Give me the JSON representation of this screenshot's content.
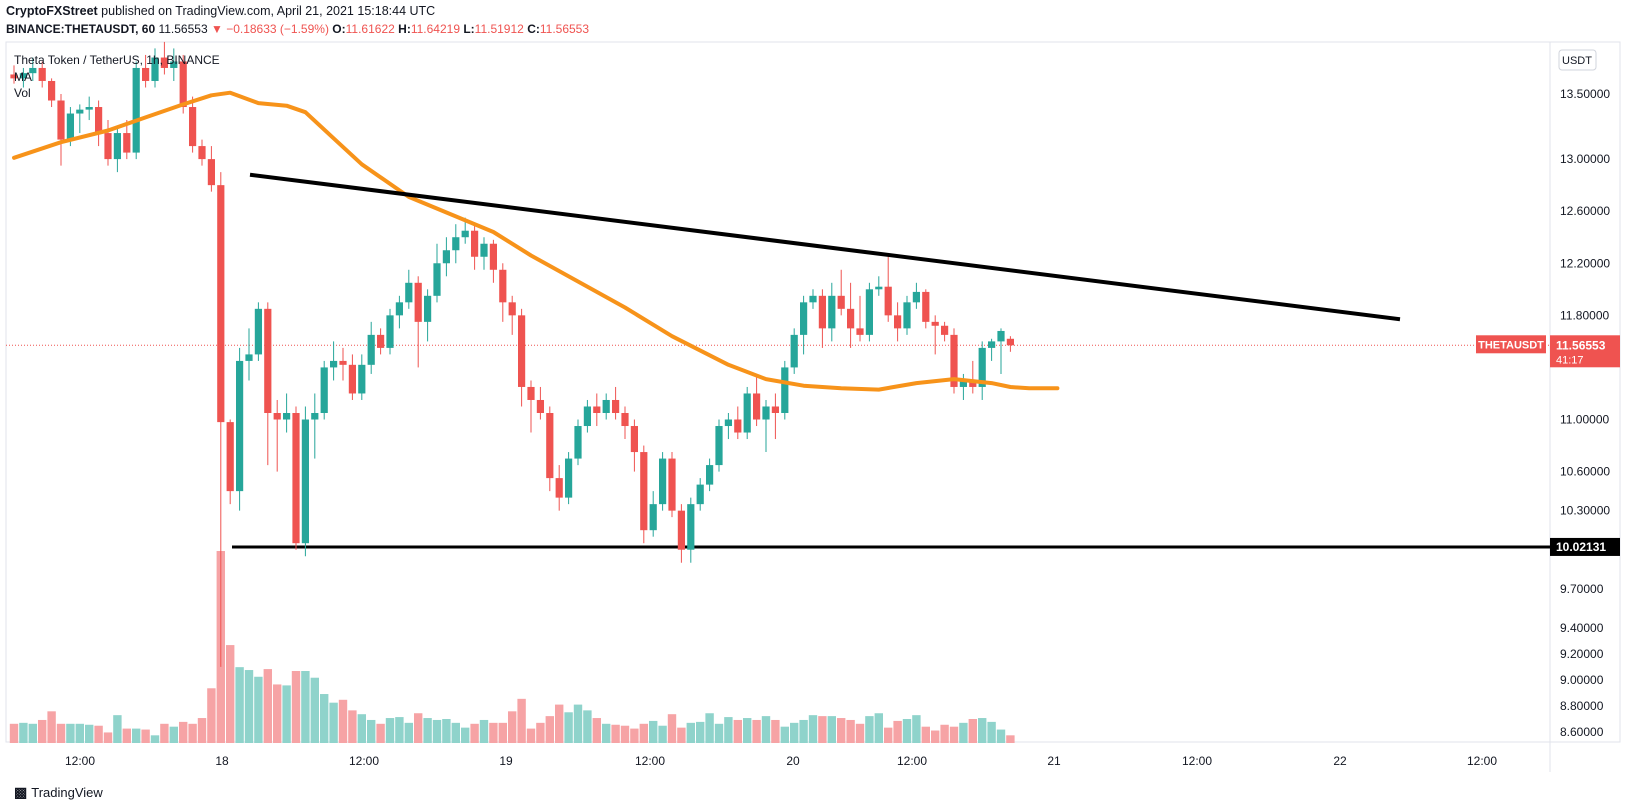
{
  "header": {
    "publisher": "CryptoFXStreet",
    "published_text": "published on TradingView.com, April 21, 2021 15:18:44 UTC",
    "symbol_line": "BINANCE:THETAUSDT, 60",
    "last": "11.56553",
    "change": "▼ −0.18633 (−1.59%)",
    "o_label": "O:",
    "o": "11.61622",
    "h_label": "H:",
    "h": "11.64219",
    "l_label": "L:",
    "l": "11.51912",
    "c_label": "C:",
    "c": "11.56553"
  },
  "legend": {
    "title": "Theta Token / TetherUS, 1h, BINANCE",
    "ma": "MA",
    "vol": "Vol"
  },
  "footer": {
    "brand": "TradingView"
  },
  "colors": {
    "up": "#26a69a",
    "down": "#ef5350",
    "vol_up": "#8fd3cb",
    "vol_down": "#f6a3a5",
    "ma": "#f7931a",
    "trend": "#000000",
    "price_tag": "#ef5350"
  },
  "chart_data": {
    "type": "candlestick",
    "pair": "THETAUSDT",
    "currency_label": "USDT",
    "y_ticks": [
      "13.50000",
      "13.00000",
      "12.60000",
      "12.20000",
      "11.80000",
      "11.00000",
      "10.60000",
      "10.30000",
      "9.70000",
      "9.40000",
      "9.20000",
      "9.00000",
      "8.80000",
      "8.60000"
    ],
    "x_ticks": [
      "12:00",
      "18",
      "12:00",
      "19",
      "12:00",
      "20",
      "12:00",
      "21",
      "12:00",
      "22",
      "12:00"
    ],
    "last_price_label": "11.56553",
    "countdown": "41:17",
    "support_label": "10.02131",
    "support_level": 10.02131,
    "trendline": {
      "from": 12.88,
      "to": 11.77
    },
    "candles": [
      [
        13.65,
        13.72,
        13.58,
        13.62
      ],
      [
        13.62,
        13.7,
        13.55,
        13.66
      ],
      [
        13.66,
        13.78,
        13.6,
        13.7
      ],
      [
        13.7,
        13.75,
        13.55,
        13.6
      ],
      [
        13.6,
        13.62,
        13.4,
        13.45
      ],
      [
        13.45,
        13.5,
        12.95,
        13.15
      ],
      [
        13.15,
        13.4,
        13.1,
        13.35
      ],
      [
        13.35,
        13.42,
        13.2,
        13.38
      ],
      [
        13.38,
        13.48,
        13.3,
        13.4
      ],
      [
        13.4,
        13.45,
        13.1,
        13.2
      ],
      [
        13.2,
        13.3,
        12.95,
        13.0
      ],
      [
        13.0,
        13.25,
        12.9,
        13.2
      ],
      [
        13.2,
        13.3,
        13.0,
        13.05
      ],
      [
        13.05,
        13.75,
        13.0,
        13.7
      ],
      [
        13.7,
        13.8,
        13.55,
        13.6
      ],
      [
        13.6,
        13.85,
        13.55,
        13.78
      ],
      [
        13.78,
        13.9,
        13.65,
        13.7
      ],
      [
        13.7,
        13.85,
        13.6,
        13.75
      ],
      [
        13.75,
        13.8,
        13.35,
        13.4
      ],
      [
        13.4,
        13.48,
        13.05,
        13.1
      ],
      [
        13.1,
        13.15,
        12.95,
        13.0
      ],
      [
        13.0,
        13.1,
        12.75,
        12.8
      ],
      [
        12.8,
        12.9,
        9.1,
        10.98
      ],
      [
        10.98,
        11.0,
        10.35,
        10.45
      ],
      [
        10.45,
        11.55,
        10.3,
        11.45
      ],
      [
        11.45,
        11.7,
        11.3,
        11.5
      ],
      [
        11.5,
        11.9,
        11.45,
        11.85
      ],
      [
        11.85,
        11.9,
        10.65,
        11.05
      ],
      [
        11.05,
        11.15,
        10.6,
        11.0
      ],
      [
        11.0,
        11.2,
        10.9,
        11.05
      ],
      [
        11.05,
        11.1,
        10.0,
        10.05
      ],
      [
        10.05,
        11.1,
        9.95,
        11.0
      ],
      [
        11.0,
        11.2,
        10.7,
        11.05
      ],
      [
        11.05,
        11.45,
        11.0,
        11.4
      ],
      [
        11.4,
        11.6,
        11.3,
        11.45
      ],
      [
        11.45,
        11.55,
        11.3,
        11.42
      ],
      [
        11.42,
        11.5,
        11.15,
        11.2
      ],
      [
        11.2,
        11.5,
        11.15,
        11.42
      ],
      [
        11.42,
        11.75,
        11.35,
        11.65
      ],
      [
        11.65,
        11.7,
        11.5,
        11.55
      ],
      [
        11.55,
        11.85,
        11.5,
        11.8
      ],
      [
        11.8,
        11.95,
        11.7,
        11.9
      ],
      [
        11.9,
        12.15,
        11.85,
        12.05
      ],
      [
        12.05,
        12.1,
        11.4,
        11.75
      ],
      [
        11.75,
        12.0,
        11.6,
        11.95
      ],
      [
        11.95,
        12.35,
        11.9,
        12.2
      ],
      [
        12.2,
        12.4,
        12.1,
        12.3
      ],
      [
        12.3,
        12.5,
        12.2,
        12.4
      ],
      [
        12.4,
        12.55,
        12.35,
        12.45
      ],
      [
        12.45,
        12.5,
        12.15,
        12.25
      ],
      [
        12.25,
        12.4,
        12.15,
        12.35
      ],
      [
        12.35,
        12.38,
        12.05,
        12.15
      ],
      [
        12.15,
        12.2,
        11.75,
        11.9
      ],
      [
        11.9,
        11.95,
        11.65,
        11.8
      ],
      [
        11.8,
        11.85,
        11.1,
        11.25
      ],
      [
        11.25,
        11.3,
        10.9,
        11.15
      ],
      [
        11.15,
        11.25,
        11.0,
        11.05
      ],
      [
        11.05,
        11.1,
        10.45,
        10.55
      ],
      [
        10.55,
        10.65,
        10.3,
        10.4
      ],
      [
        10.4,
        10.75,
        10.35,
        10.7
      ],
      [
        10.7,
        11.0,
        10.65,
        10.95
      ],
      [
        10.95,
        11.15,
        10.9,
        11.1
      ],
      [
        11.1,
        11.2,
        10.95,
        11.05
      ],
      [
        11.05,
        11.2,
        11.0,
        11.15
      ],
      [
        11.15,
        11.25,
        11.0,
        11.05
      ],
      [
        11.05,
        11.1,
        10.85,
        10.95
      ],
      [
        10.95,
        11.0,
        10.6,
        10.75
      ],
      [
        10.75,
        10.8,
        10.05,
        10.15
      ],
      [
        10.15,
        10.45,
        10.1,
        10.35
      ],
      [
        10.35,
        10.75,
        10.3,
        10.7
      ],
      [
        10.7,
        10.75,
        10.25,
        10.3
      ],
      [
        10.3,
        10.35,
        9.9,
        10.0
      ],
      [
        10.0,
        10.4,
        9.9,
        10.35
      ],
      [
        10.35,
        10.55,
        10.3,
        10.5
      ],
      [
        10.5,
        10.7,
        10.45,
        10.65
      ],
      [
        10.65,
        11.0,
        10.6,
        10.95
      ],
      [
        10.95,
        11.05,
        10.85,
        11.0
      ],
      [
        11.0,
        11.1,
        10.85,
        10.9
      ],
      [
        10.9,
        11.25,
        10.85,
        11.2
      ],
      [
        11.2,
        11.35,
        10.95,
        11.0
      ],
      [
        11.0,
        11.15,
        10.75,
        11.1
      ],
      [
        11.1,
        11.2,
        10.85,
        11.05
      ],
      [
        11.05,
        11.45,
        11.0,
        11.4
      ],
      [
        11.4,
        11.7,
        11.35,
        11.65
      ],
      [
        11.65,
        11.95,
        11.5,
        11.9
      ],
      [
        11.9,
        12.0,
        11.85,
        11.95
      ],
      [
        11.95,
        12.0,
        11.55,
        11.7
      ],
      [
        11.7,
        12.05,
        11.6,
        11.95
      ],
      [
        11.95,
        12.15,
        11.8,
        11.85
      ],
      [
        11.85,
        12.05,
        11.55,
        11.7
      ],
      [
        11.7,
        11.95,
        11.6,
        11.65
      ],
      [
        11.65,
        12.05,
        11.6,
        12.0
      ],
      [
        12.0,
        12.1,
        11.95,
        12.02
      ],
      [
        12.02,
        12.25,
        11.75,
        11.8
      ],
      [
        11.8,
        11.9,
        11.6,
        11.7
      ],
      [
        11.7,
        11.95,
        11.65,
        11.9
      ],
      [
        11.9,
        12.05,
        11.85,
        11.98
      ],
      [
        11.98,
        12.0,
        11.7,
        11.75
      ],
      [
        11.75,
        11.8,
        11.5,
        11.72
      ],
      [
        11.72,
        11.75,
        11.6,
        11.65
      ],
      [
        11.65,
        11.7,
        11.2,
        11.25
      ],
      [
        11.25,
        11.35,
        11.15,
        11.3
      ],
      [
        11.3,
        11.45,
        11.2,
        11.25
      ],
      [
        11.25,
        11.6,
        11.15,
        11.55
      ],
      [
        11.55,
        11.62,
        11.45,
        11.6
      ],
      [
        11.6,
        11.7,
        11.35,
        11.68
      ],
      [
        11.62,
        11.64,
        11.52,
        11.57
      ]
    ],
    "volumes": [
      0.2,
      0.21,
      0.2,
      0.24,
      0.33,
      0.2,
      0.2,
      0.2,
      0.19,
      0.18,
      0.11,
      0.29,
      0.15,
      0.15,
      0.14,
      0.08,
      0.2,
      0.17,
      0.22,
      0.2,
      0.26,
      0.57,
      2.0,
      1.02,
      0.79,
      0.76,
      0.69,
      0.77,
      0.61,
      0.6,
      0.75,
      0.75,
      0.68,
      0.51,
      0.42,
      0.45,
      0.34,
      0.3,
      0.24,
      0.2,
      0.26,
      0.27,
      0.21,
      0.31,
      0.26,
      0.24,
      0.25,
      0.21,
      0.16,
      0.2,
      0.24,
      0.21,
      0.21,
      0.33,
      0.46,
      0.15,
      0.21,
      0.28,
      0.4,
      0.32,
      0.4,
      0.34,
      0.26,
      0.2,
      0.19,
      0.18,
      0.15,
      0.2,
      0.23,
      0.18,
      0.3,
      0.16,
      0.21,
      0.22,
      0.31,
      0.2,
      0.27,
      0.24,
      0.26,
      0.24,
      0.28,
      0.24,
      0.17,
      0.21,
      0.24,
      0.29,
      0.28,
      0.28,
      0.26,
      0.24,
      0.2,
      0.28,
      0.31,
      0.16,
      0.23,
      0.25,
      0.29,
      0.17,
      0.13,
      0.19,
      0.17,
      0.21,
      0.25,
      0.26,
      0.22,
      0.14,
      0.08
    ],
    "ma": [
      [
        0,
        13.01
      ],
      [
        5,
        13.13
      ],
      [
        10,
        13.22
      ],
      [
        14,
        13.32
      ],
      [
        18,
        13.42
      ],
      [
        21,
        13.49
      ],
      [
        23,
        13.51
      ],
      [
        26,
        13.43
      ],
      [
        29,
        13.41
      ],
      [
        31,
        13.36
      ],
      [
        34,
        13.16
      ],
      [
        37,
        12.96
      ],
      [
        42,
        12.71
      ],
      [
        47,
        12.56
      ],
      [
        51,
        12.44
      ],
      [
        55,
        12.26
      ],
      [
        60,
        12.06
      ],
      [
        65,
        11.86
      ],
      [
        70,
        11.64
      ],
      [
        76,
        11.42
      ],
      [
        80,
        11.31
      ],
      [
        84,
        11.26
      ],
      [
        88,
        11.24
      ],
      [
        92,
        11.23
      ],
      [
        96,
        11.28
      ],
      [
        100,
        11.31
      ],
      [
        104,
        11.28
      ],
      [
        106,
        11.25
      ],
      [
        108,
        11.24
      ],
      [
        111,
        11.24
      ]
    ]
  }
}
